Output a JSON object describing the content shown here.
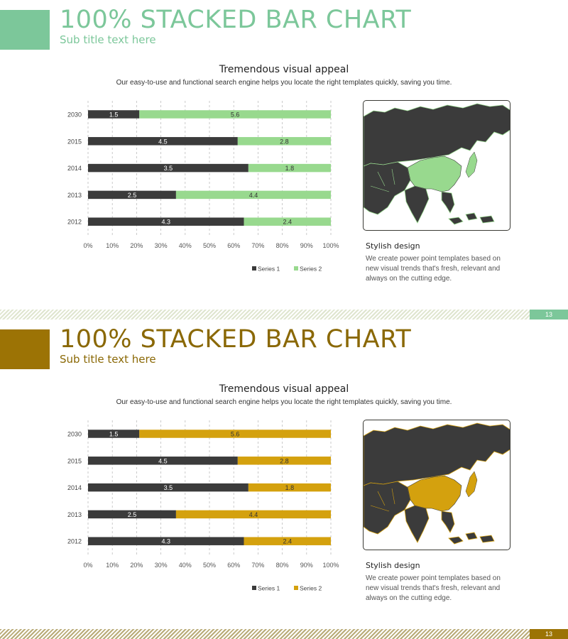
{
  "slides": [
    {
      "title_bold": "100% STACKED",
      "title_rest": " BAR CHART",
      "subtitle": "Sub title text here",
      "heading": "Tremendous visual appeal",
      "description": "Our easy-to-use and functional search engine helps you locate the right templates quickly, saving you time.",
      "side_title": "Stylish design",
      "side_text": "We create power point templates based on new visual trends that's fresh, relevant and always on the cutting edge.",
      "page_number": "13",
      "colors": {
        "accent": "#7cc79a",
        "series1": "#3b3b3b",
        "series2": "#98d98e",
        "map_land": "#3b3b3b",
        "map_highlight": "#98d98e"
      }
    },
    {
      "title_bold": "100% STACKED",
      "title_rest": " BAR CHART",
      "subtitle": "Sub title text here",
      "heading": "Tremendous visual appeal",
      "description": "Our easy-to-use and functional search engine helps you locate the right templates quickly, saving you time.",
      "side_title": "Stylish design",
      "side_text": "We create power point templates based on new visual trends that's fresh, relevant and always on the cutting edge.",
      "page_number": "13",
      "colors": {
        "accent": "#9c7305",
        "series1": "#3b3b3b",
        "series2": "#d4a10e",
        "map_land": "#3b3b3b",
        "map_highlight": "#d4a10e"
      }
    }
  ],
  "chart_data": [
    {
      "type": "bar",
      "orientation": "horizontal",
      "stacking": "100%",
      "categories": [
        "2030",
        "2015",
        "2014",
        "2013",
        "2012"
      ],
      "series": [
        {
          "name": "Series 1",
          "values": [
            1.5,
            4.5,
            3.5,
            2.5,
            4.3
          ]
        },
        {
          "name": "Series 2",
          "values": [
            5.6,
            2.8,
            1.8,
            4.4,
            2.4
          ]
        }
      ],
      "xticks": [
        "0%",
        "10%",
        "20%",
        "30%",
        "40%",
        "50%",
        "60%",
        "70%",
        "80%",
        "90%",
        "100%"
      ],
      "xlim": [
        0,
        100
      ],
      "grid": "vertical dashed",
      "legend": "bottom"
    },
    {
      "type": "bar",
      "orientation": "horizontal",
      "stacking": "100%",
      "categories": [
        "2030",
        "2015",
        "2014",
        "2013",
        "2012"
      ],
      "series": [
        {
          "name": "Series 1",
          "values": [
            1.5,
            4.5,
            3.5,
            2.5,
            4.3
          ]
        },
        {
          "name": "Series 2",
          "values": [
            5.6,
            2.8,
            1.8,
            4.4,
            2.4
          ]
        }
      ],
      "xticks": [
        "0%",
        "10%",
        "20%",
        "30%",
        "40%",
        "50%",
        "60%",
        "70%",
        "80%",
        "90%",
        "100%"
      ],
      "xlim": [
        0,
        100
      ],
      "grid": "vertical dashed",
      "legend": "bottom"
    }
  ]
}
